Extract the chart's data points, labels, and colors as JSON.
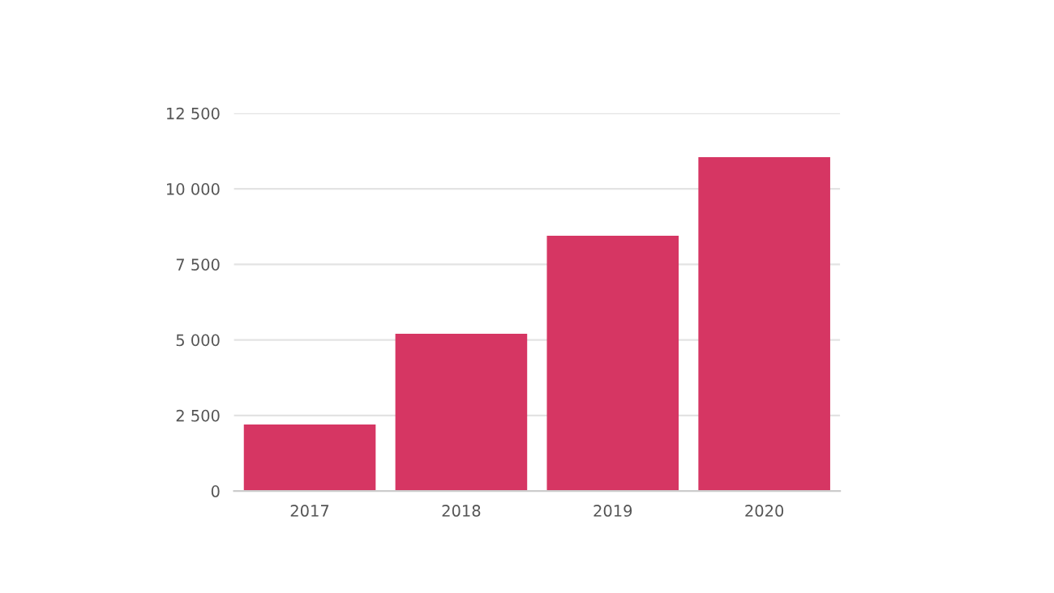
{
  "chart_data": {
    "type": "bar",
    "categories": [
      "2017",
      "2018",
      "2019",
      "2020"
    ],
    "values": [
      2200,
      5200,
      8450,
      11050
    ],
    "color": "#d63663",
    "ylim": [
      0,
      12500
    ],
    "yticks": [
      {
        "value": 0,
        "label": "0"
      },
      {
        "value": 2500,
        "label": "2 500"
      },
      {
        "value": 5000,
        "label": "5 000"
      },
      {
        "value": 7500,
        "label": "7 500"
      },
      {
        "value": 10000,
        "label": "10 000"
      },
      {
        "value": 12500,
        "label": "12 500"
      }
    ],
    "grid": "y"
  }
}
